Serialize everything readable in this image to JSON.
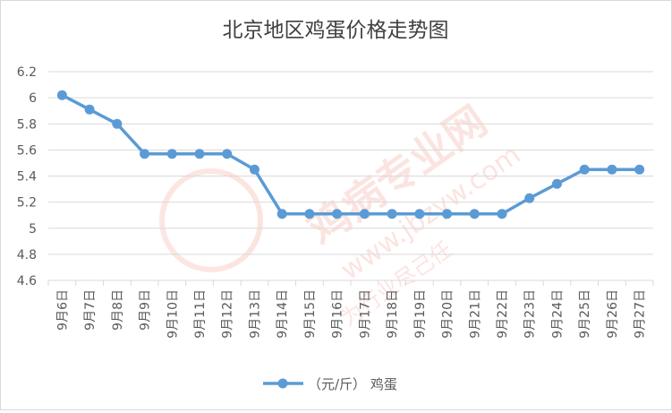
{
  "chart_data": {
    "type": "line",
    "title": "北京地区鸡蛋价格走势图",
    "xlabel": "",
    "ylabel": "",
    "categories": [
      "9月6日",
      "9月7日",
      "9月8日",
      "9月9日",
      "9月10日",
      "9月11日",
      "9月12日",
      "9月13日",
      "9月14日",
      "9月15日",
      "9月16日",
      "9月17日",
      "9月18日",
      "9月19日",
      "9月20日",
      "9月21日",
      "9月22日",
      "9月23日",
      "9月24日",
      "9月25日",
      "9月26日",
      "9月27日"
    ],
    "series": [
      {
        "name": "（元/斤） 鸡蛋",
        "values": [
          6.02,
          5.91,
          5.8,
          5.57,
          5.57,
          5.57,
          5.57,
          5.45,
          5.11,
          5.11,
          5.11,
          5.11,
          5.11,
          5.11,
          5.11,
          5.11,
          5.11,
          5.23,
          5.34,
          5.45,
          5.45,
          5.45
        ]
      }
    ],
    "ylim": [
      4.6,
      6.2
    ],
    "yticks": [
      "4.6",
      "4.8",
      "5",
      "5.2",
      "5.4",
      "5.6",
      "5.8",
      "6",
      "6.2"
    ],
    "grid": true,
    "legend": "bottom-center",
    "colors": {
      "line": "#5b9bd5",
      "grid": "#d9d9d9",
      "text": "#595959",
      "title": "#404040"
    }
  },
  "watermark": {
    "brand": "鸡病专业网",
    "url": "www.jbzyw.com",
    "slogan": "为行业尽己任"
  }
}
